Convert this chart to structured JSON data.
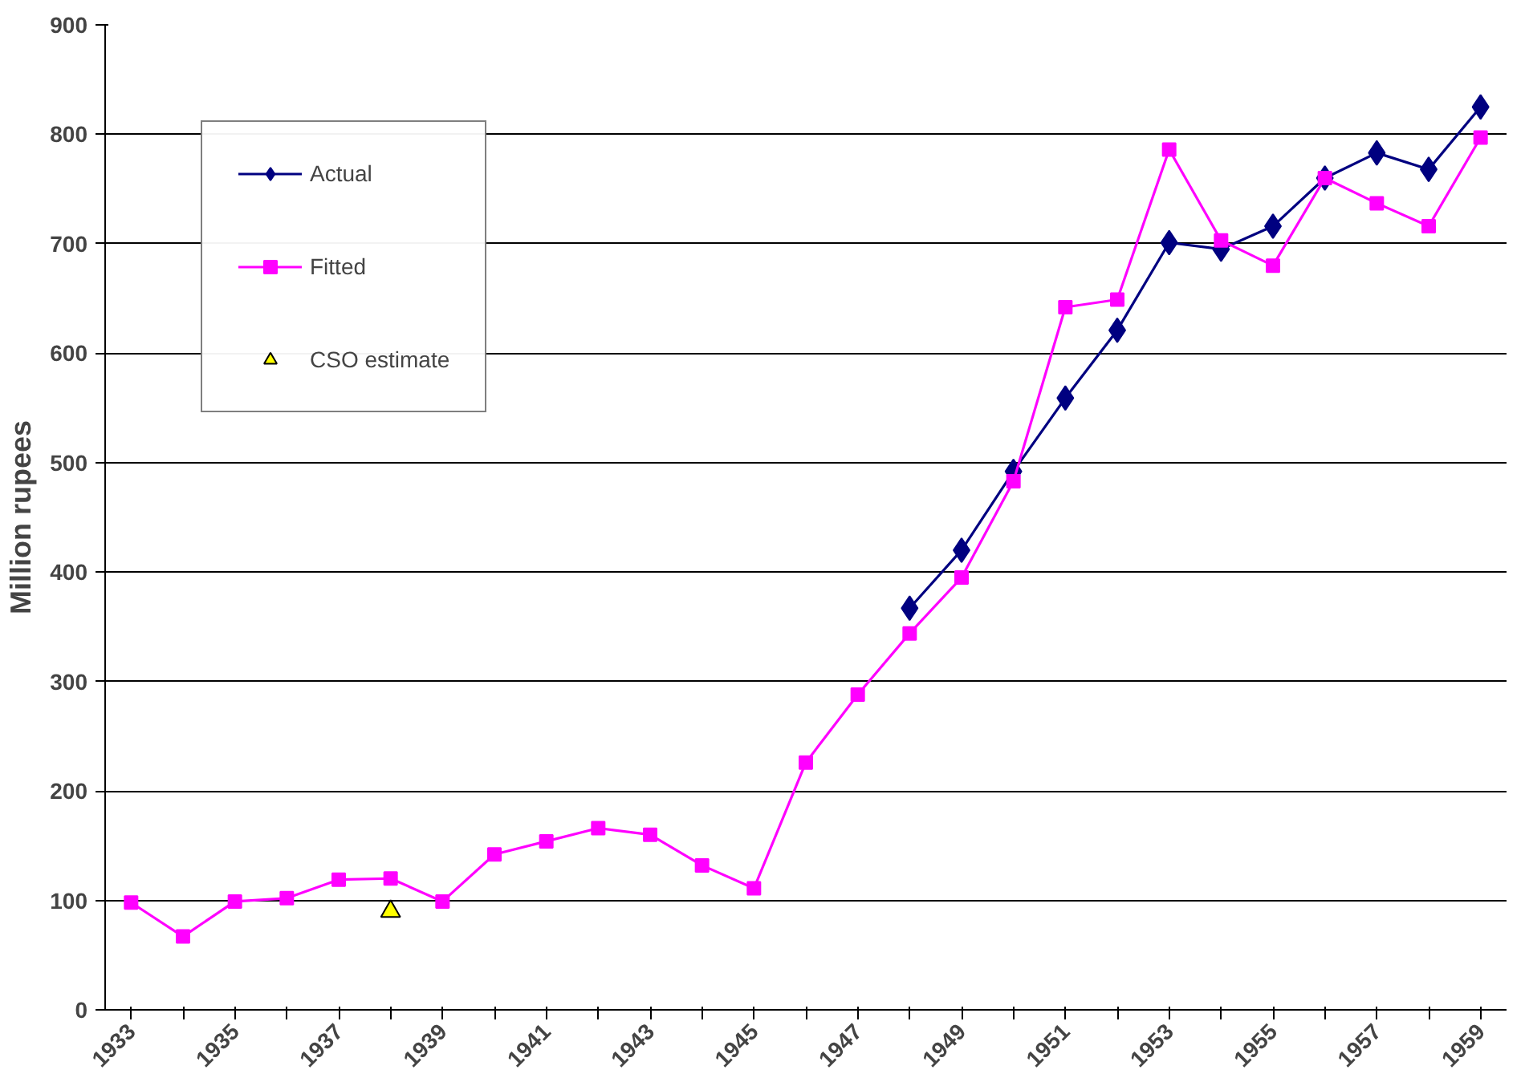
{
  "chart_data": {
    "type": "line",
    "ylabel": "Million rupees",
    "categories": [
      "1933",
      null,
      "1935",
      null,
      "1937",
      null,
      "1939",
      null,
      "1941",
      null,
      "1943",
      null,
      "1945",
      null,
      "1947",
      null,
      "1949",
      null,
      "1951",
      null,
      "1953",
      null,
      "1955",
      null,
      "1957",
      null,
      "1959"
    ],
    "series": [
      {
        "name": "Actual",
        "color": "#000080",
        "marker": "diamond",
        "values": [
          null,
          null,
          null,
          null,
          null,
          null,
          null,
          null,
          null,
          null,
          null,
          null,
          null,
          null,
          null,
          367,
          420,
          492,
          559,
          621,
          701,
          695,
          716,
          760,
          783,
          768,
          825
        ]
      },
      {
        "name": "Fitted",
        "color": "#ff00ff",
        "marker": "square",
        "values": [
          98,
          67,
          99,
          102,
          119,
          120,
          99,
          142,
          154,
          166,
          160,
          132,
          111,
          226,
          288,
          344,
          395,
          483,
          642,
          649,
          786,
          703,
          680,
          760,
          737,
          716,
          797
        ]
      },
      {
        "name": "CSO estimate",
        "type": "scatter",
        "color": "#ffff00",
        "marker": "triangle",
        "values": [
          null,
          null,
          null,
          null,
          null,
          90,
          null,
          null,
          null,
          null,
          null,
          null,
          null,
          null,
          null,
          null,
          null,
          null,
          null,
          null,
          null,
          null,
          null,
          null,
          null,
          null,
          null
        ]
      }
    ],
    "ylim": [
      0,
      900
    ],
    "yticks": [
      0,
      100,
      200,
      300,
      400,
      500,
      600,
      700,
      800,
      900
    ],
    "grid": "y",
    "legend": "top left"
  }
}
